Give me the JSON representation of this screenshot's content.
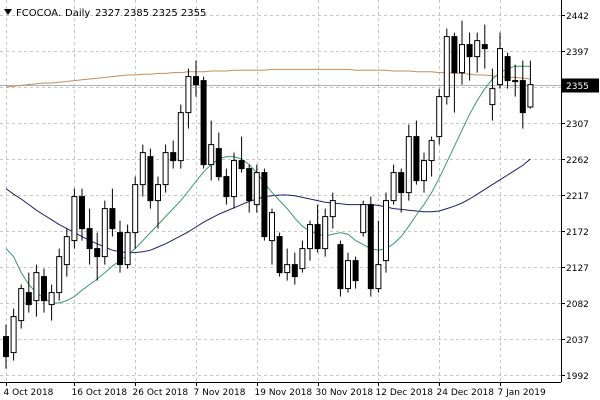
{
  "header": {
    "symbol": "FCOCOA.",
    "timeframe": "Daily",
    "ohlc": "2327 2385 2325 2355"
  },
  "chart_data": {
    "type": "candlestick",
    "symbol": "FCOCOA.",
    "timeframe": "Daily",
    "ylim": [
      1992,
      2442
    ],
    "y_ticks": [
      1992,
      2037,
      2082,
      2127,
      2172,
      2217,
      2262,
      2307,
      2352,
      2397,
      2442
    ],
    "x_tick_labels": [
      {
        "bar": 0,
        "label": "4 Oct 2018"
      },
      {
        "bar": 9,
        "label": "16 Oct 2018"
      },
      {
        "bar": 17,
        "label": "26 Oct 2018"
      },
      {
        "bar": 25,
        "label": "7 Nov 2018"
      },
      {
        "bar": 33,
        "label": "19 Nov 2018"
      },
      {
        "bar": 41,
        "label": "30 Nov 2018"
      },
      {
        "bar": 49,
        "label": "12 Dec 2018"
      },
      {
        "bar": 57,
        "label": "24 Dec 2018"
      },
      {
        "bar": 65,
        "label": "7 Jan 2019"
      }
    ],
    "last_price": 2355,
    "grid": true,
    "candles": [
      [
        2040,
        2055,
        2000,
        2015
      ],
      [
        2020,
        2075,
        2010,
        2065
      ],
      [
        2060,
        2105,
        2050,
        2100
      ],
      [
        2095,
        2120,
        2070,
        2080
      ],
      [
        2085,
        2130,
        2065,
        2120
      ],
      [
        2115,
        2125,
        2070,
        2085
      ],
      [
        2080,
        2105,
        2060,
        2095
      ],
      [
        2095,
        2150,
        2085,
        2140
      ],
      [
        2130,
        2175,
        2115,
        2165
      ],
      [
        2160,
        2225,
        2150,
        2215
      ],
      [
        2215,
        2225,
        2160,
        2175
      ],
      [
        2175,
        2200,
        2130,
        2150
      ],
      [
        2150,
        2170,
        2110,
        2140
      ],
      [
        2140,
        2210,
        2130,
        2200
      ],
      [
        2200,
        2225,
        2165,
        2175
      ],
      [
        2170,
        2185,
        2120,
        2130
      ],
      [
        2130,
        2180,
        2125,
        2170
      ],
      [
        2170,
        2240,
        2150,
        2230
      ],
      [
        2230,
        2280,
        2215,
        2270
      ],
      [
        2265,
        2275,
        2200,
        2210
      ],
      [
        2210,
        2240,
        2175,
        2230
      ],
      [
        2230,
        2280,
        2220,
        2270
      ],
      [
        2270,
        2285,
        2250,
        2260
      ],
      [
        2260,
        2330,
        2250,
        2320
      ],
      [
        2320,
        2375,
        2300,
        2365
      ],
      [
        2365,
        2385,
        2340,
        2355
      ],
      [
        2360,
        2365,
        2250,
        2255
      ],
      [
        2255,
        2310,
        2235,
        2280
      ],
      [
        2275,
        2295,
        2235,
        2240
      ],
      [
        2240,
        2250,
        2205,
        2215
      ],
      [
        2215,
        2270,
        2200,
        2260
      ],
      [
        2260,
        2290,
        2245,
        2250
      ],
      [
        2250,
        2255,
        2195,
        2210
      ],
      [
        2205,
        2255,
        2195,
        2245
      ],
      [
        2245,
        2250,
        2160,
        2165
      ],
      [
        2160,
        2200,
        2130,
        2195
      ],
      [
        2165,
        2170,
        2115,
        2120
      ],
      [
        2120,
        2150,
        2110,
        2130
      ],
      [
        2130,
        2145,
        2105,
        2115
      ],
      [
        2125,
        2160,
        2120,
        2150
      ],
      [
        2150,
        2185,
        2135,
        2180
      ],
      [
        2180,
        2205,
        2145,
        2150
      ],
      [
        2150,
        2200,
        2140,
        2190
      ],
      [
        2190,
        2220,
        2175,
        2210
      ],
      [
        2155,
        2160,
        2090,
        2100
      ],
      [
        2100,
        2145,
        2095,
        2135
      ],
      [
        2135,
        2140,
        2100,
        2110
      ],
      [
        2170,
        2210,
        2165,
        2205
      ],
      [
        2205,
        2215,
        2090,
        2100
      ],
      [
        2100,
        2185,
        2095,
        2130
      ],
      [
        2135,
        2220,
        2120,
        2210
      ],
      [
        2210,
        2255,
        2205,
        2245
      ],
      [
        2245,
        2250,
        2195,
        2220
      ],
      [
        2220,
        2305,
        2210,
        2290
      ],
      [
        2290,
        2310,
        2230,
        2235
      ],
      [
        2235,
        2270,
        2220,
        2260
      ],
      [
        2260,
        2290,
        2240,
        2285
      ],
      [
        2290,
        2350,
        2280,
        2340
      ],
      [
        2340,
        2425,
        2330,
        2415
      ],
      [
        2415,
        2420,
        2320,
        2370
      ],
      [
        2370,
        2435,
        2355,
        2405
      ],
      [
        2405,
        2420,
        2360,
        2390
      ],
      [
        2390,
        2420,
        2370,
        2410
      ],
      [
        2405,
        2430,
        2375,
        2400
      ],
      [
        2330,
        2375,
        2310,
        2350
      ],
      [
        2355,
        2420,
        2350,
        2400
      ],
      [
        2390,
        2395,
        2350,
        2360
      ],
      [
        2360,
        2380,
        2340,
        2360
      ],
      [
        2360,
        2385,
        2300,
        2320
      ],
      [
        2327,
        2385,
        2325,
        2355
      ]
    ],
    "ma_fast": [
      2150,
      2140,
      2120,
      2105,
      2095,
      2088,
      2082,
      2082,
      2085,
      2090,
      2098,
      2105,
      2112,
      2120,
      2128,
      2135,
      2142,
      2150,
      2160,
      2170,
      2180,
      2190,
      2200,
      2210,
      2222,
      2234,
      2246,
      2255,
      2262,
      2265,
      2265,
      2262,
      2255,
      2245,
      2232,
      2220,
      2210,
      2200,
      2188,
      2178,
      2172,
      2168,
      2166,
      2168,
      2170,
      2168,
      2160,
      2155,
      2150,
      2148,
      2150,
      2156,
      2165,
      2178,
      2192,
      2205,
      2220,
      2238,
      2258,
      2278,
      2298,
      2318,
      2335,
      2350,
      2362,
      2370,
      2375,
      2378,
      2378,
      2378
    ],
    "ma_mid": [
      2225,
      2218,
      2212,
      2205,
      2198,
      2192,
      2186,
      2180,
      2175,
      2170,
      2165,
      2160,
      2156,
      2152,
      2148,
      2146,
      2145,
      2145,
      2146,
      2148,
      2152,
      2156,
      2161,
      2166,
      2171,
      2177,
      2183,
      2188,
      2193,
      2197,
      2201,
      2205,
      2209,
      2212,
      2215,
      2216,
      2217,
      2217,
      2216,
      2214,
      2212,
      2210,
      2208,
      2207,
      2206,
      2205,
      2205,
      2205,
      2205,
      2204,
      2202,
      2200,
      2199,
      2198,
      2197,
      2196,
      2196,
      2197,
      2200,
      2203,
      2207,
      2212,
      2218,
      2224,
      2230,
      2236,
      2242,
      2248,
      2254,
      2262
    ],
    "ma_slow": [
      2352,
      2353,
      2354,
      2355,
      2356,
      2357,
      2357,
      2358,
      2359,
      2360,
      2361,
      2362,
      2363,
      2364,
      2365,
      2366,
      2367,
      2367,
      2368,
      2368,
      2369,
      2369,
      2370,
      2370,
      2371,
      2371,
      2371,
      2372,
      2372,
      2372,
      2373,
      2373,
      2373,
      2373,
      2373,
      2374,
      2374,
      2374,
      2374,
      2374,
      2374,
      2374,
      2374,
      2374,
      2374,
      2374,
      2373,
      2373,
      2373,
      2373,
      2373,
      2372,
      2372,
      2372,
      2371,
      2371,
      2371,
      2370,
      2370,
      2369,
      2369,
      2368,
      2367,
      2367,
      2366,
      2365,
      2364,
      2364,
      2363,
      2362
    ],
    "colors": {
      "background": "#ffffff",
      "grid": "#c6c6c6",
      "axis": "#000000",
      "candle": "#000000",
      "ma_fast": "#3a9a6a",
      "ma_mid": "#1a1f6e",
      "ma_slow": "#c88c5a",
      "price_line": "#b0b0b0",
      "price_label_bg": "#000000",
      "price_label_text": "#ffffff"
    }
  }
}
